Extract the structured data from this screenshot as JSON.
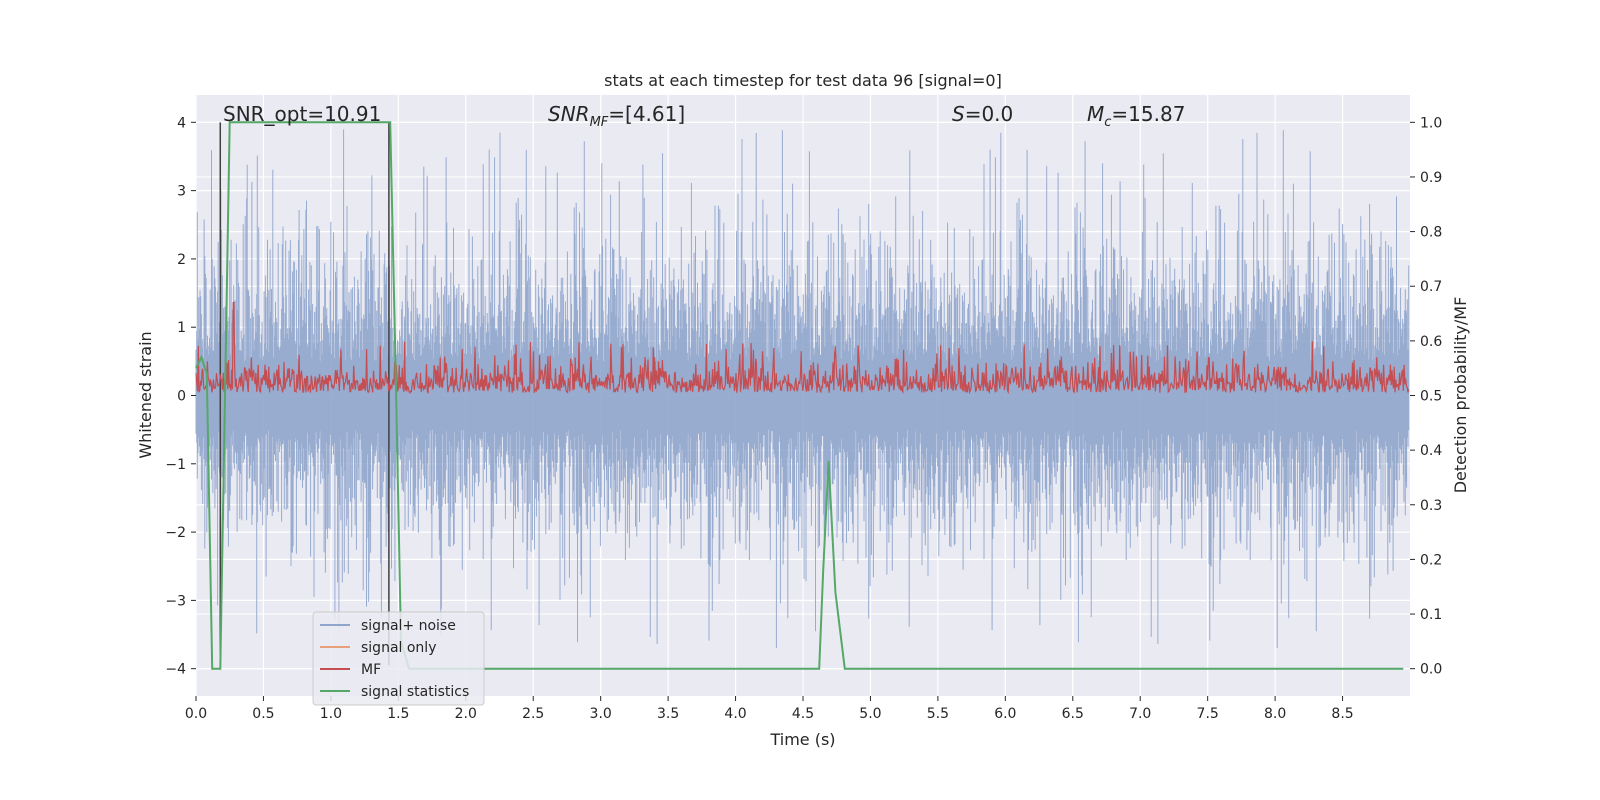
{
  "chart_data": {
    "type": "line",
    "title": "stats at each timestep for test data 96 [signal=0]",
    "xlabel": "Time (s)",
    "ylabel": "Whitened strain",
    "ylabel_right": "Detection probability/MF",
    "xlim": [
      0.0,
      9.0
    ],
    "ylim": [
      -4.4,
      4.4
    ],
    "ylim_right": [
      -0.05,
      1.05
    ],
    "x_ticks": [
      "0.0",
      "0.5",
      "1.0",
      "1.5",
      "2.0",
      "2.5",
      "3.0",
      "3.5",
      "4.0",
      "4.5",
      "5.0",
      "5.5",
      "6.0",
      "6.5",
      "7.0",
      "7.5",
      "8.0",
      "8.5"
    ],
    "y_ticks": [
      "4",
      "3",
      "2",
      "1",
      "0",
      "−1",
      "−2",
      "−3",
      "−4"
    ],
    "y_ticks_right": [
      "1.0",
      "0.9",
      "0.8",
      "0.7",
      "0.6",
      "0.5",
      "0.4",
      "0.3",
      "0.2",
      "0.1",
      "0.0"
    ],
    "annotations": {
      "snr_opt": "SNR_opt=10.91",
      "snr_mf_main": "SNR",
      "snr_mf_sub": "MF",
      "snr_mf_value": "=[4.61]",
      "s_main": "S",
      "s_value": "=0.0",
      "mc_main": "M",
      "mc_sub": "c",
      "mc_value": "=15.87"
    },
    "legend": [
      "signal+ noise",
      "signal only",
      "MF",
      "signal statistics"
    ],
    "legend_placement": "lower-left",
    "grid": true,
    "colors": {
      "signal_noise": "#8fa5cc",
      "signal_only": "#e8a07a",
      "mf": "#c44e52",
      "signal_statistics": "#55a868",
      "markers": "#404040",
      "background": "#eaeaf2"
    },
    "series": [
      {
        "name": "signal statistics",
        "axis": "right",
        "x": [
          0.0,
          0.04,
          0.08,
          0.12,
          0.18,
          0.25,
          0.3,
          0.5,
          0.8,
          1.0,
          1.2,
          1.4,
          1.44,
          1.48,
          1.52,
          1.58,
          2.0,
          3.0,
          4.0,
          4.62,
          4.65,
          4.69,
          4.74,
          4.81,
          4.85,
          5.0,
          6.0,
          7.0,
          7.2,
          8.0,
          8.95
        ],
        "y": [
          0.55,
          0.57,
          0.54,
          0.0,
          0.0,
          1.0,
          1.0,
          1.0,
          1.0,
          1.0,
          1.0,
          1.0,
          1.0,
          0.55,
          0.05,
          0.0,
          0.0,
          0.0,
          0.0,
          0.0,
          0.18,
          0.38,
          0.14,
          0.0,
          0.0,
          0.0,
          0.0,
          0.0,
          0.0,
          0.0,
          0.0
        ]
      },
      {
        "name": "signal+ noise",
        "axis": "left",
        "envelope": "noise band, roughly ±1.5 with spikes to ±3.8"
      },
      {
        "name": "MF",
        "axis": "right",
        "envelope": "fluctuating between 0.5 and 0.59, peaks near 0.60"
      }
    ],
    "vertical_markers": [
      0.18,
      1.43
    ]
  }
}
